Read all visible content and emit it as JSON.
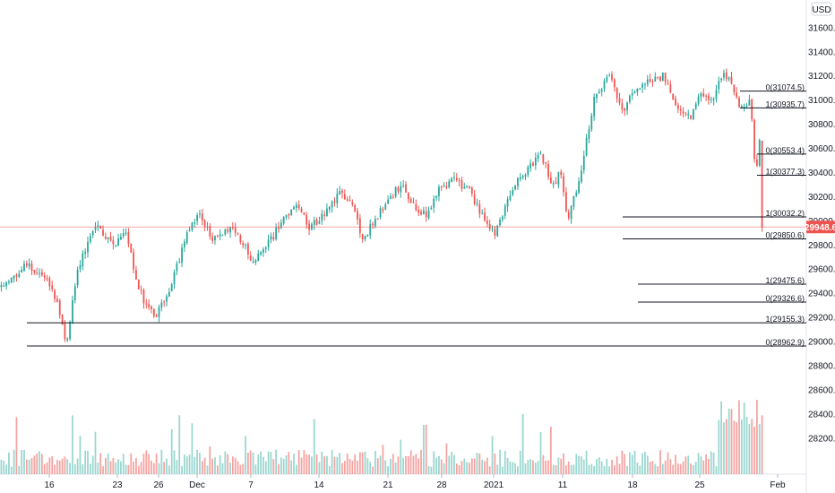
{
  "chart_data": {
    "type": "candlestick",
    "title": "",
    "currency": "USD",
    "ylim": [
      27998,
      31740
    ],
    "y_ticks": [
      "31600.0",
      "31400.0",
      "31200.0",
      "31000.0",
      "30800.0",
      "30600.0",
      "30400.0",
      "30200.0",
      "30000.0",
      "29800.0",
      "29600.0",
      "29400.0",
      "29200.0",
      "29000.0",
      "28800.0",
      "28600.0",
      "28400.0",
      "28200.0"
    ],
    "x_ticks": [
      "16",
      "23",
      "26",
      "Dec",
      "7",
      "14",
      "21",
      "28",
      "2021",
      "11",
      "18",
      "25",
      "Feb"
    ],
    "current_price": "29948.6",
    "current_price_value": 29948.6,
    "level_lines": [
      {
        "label": "0(31074.5)",
        "value": 31074.5
      },
      {
        "label": "1(30935.7)",
        "value": 30935.7
      },
      {
        "label": "0(30553.4)",
        "value": 30553.4
      },
      {
        "label": "1(30377.3)",
        "value": 30377.3
      },
      {
        "label": "1(30032.2)",
        "value": 30032.2
      },
      {
        "label": "0(29850.6)",
        "value": 29850.6
      },
      {
        "label": "1(29475.6)",
        "value": 29475.6
      },
      {
        "label": "0(29326.6)",
        "value": 29326.6
      },
      {
        "label": "1(29155.3)",
        "value": 29155.3
      },
      {
        "label": "0(28962.9)",
        "value": 28962.9
      }
    ],
    "price_path_knots": [
      [
        29450,
        29650,
        29500,
        29300,
        28950,
        29600,
        29950,
        29800,
        29900,
        29450,
        29300,
        29220,
        29500,
        29900,
        30100,
        29850,
        29950,
        29850,
        29650,
        29800,
        30000,
        30150,
        29950,
        30050,
        30250,
        30150,
        29850,
        30100,
        30300,
        30100,
        30050,
        30250,
        30350,
        30250,
        30000,
        29900,
        30150,
        30350,
        30550,
        30300,
        30400,
        30000,
        30350,
        31050,
        31200,
        30900,
        31100,
        31150,
        31200,
        30900,
        30850,
        31050,
        31000,
        31250,
        31050,
        30900,
        31000,
        30300,
        30800,
        30150,
        29900
      ],
      [
        0,
        0.035,
        0.06,
        0.075,
        0.085,
        0.1,
        0.125,
        0.15,
        0.165,
        0.18,
        0.19,
        0.205,
        0.225,
        0.245,
        0.26,
        0.275,
        0.3,
        0.315,
        0.33,
        0.35,
        0.37,
        0.385,
        0.405,
        0.425,
        0.445,
        0.46,
        0.475,
        0.5,
        0.525,
        0.545,
        0.56,
        0.575,
        0.595,
        0.615,
        0.635,
        0.65,
        0.665,
        0.68,
        0.71,
        0.725,
        0.735,
        0.745,
        0.76,
        0.78,
        0.8,
        0.815,
        0.835,
        0.85,
        0.87,
        0.89,
        0.905,
        0.92,
        0.935,
        0.95,
        0.965,
        0.975,
        0.985,
        0.992,
        0.996,
        0.999,
        1.0
      ]
    ],
    "candle_count": 300,
    "up_color": "#26a69a",
    "down_color": "#ef5350",
    "volume_up_color": "#9ad6cf",
    "volume_down_color": "#f5a3a1",
    "price_line_color": "#ef5350",
    "grid": false
  }
}
